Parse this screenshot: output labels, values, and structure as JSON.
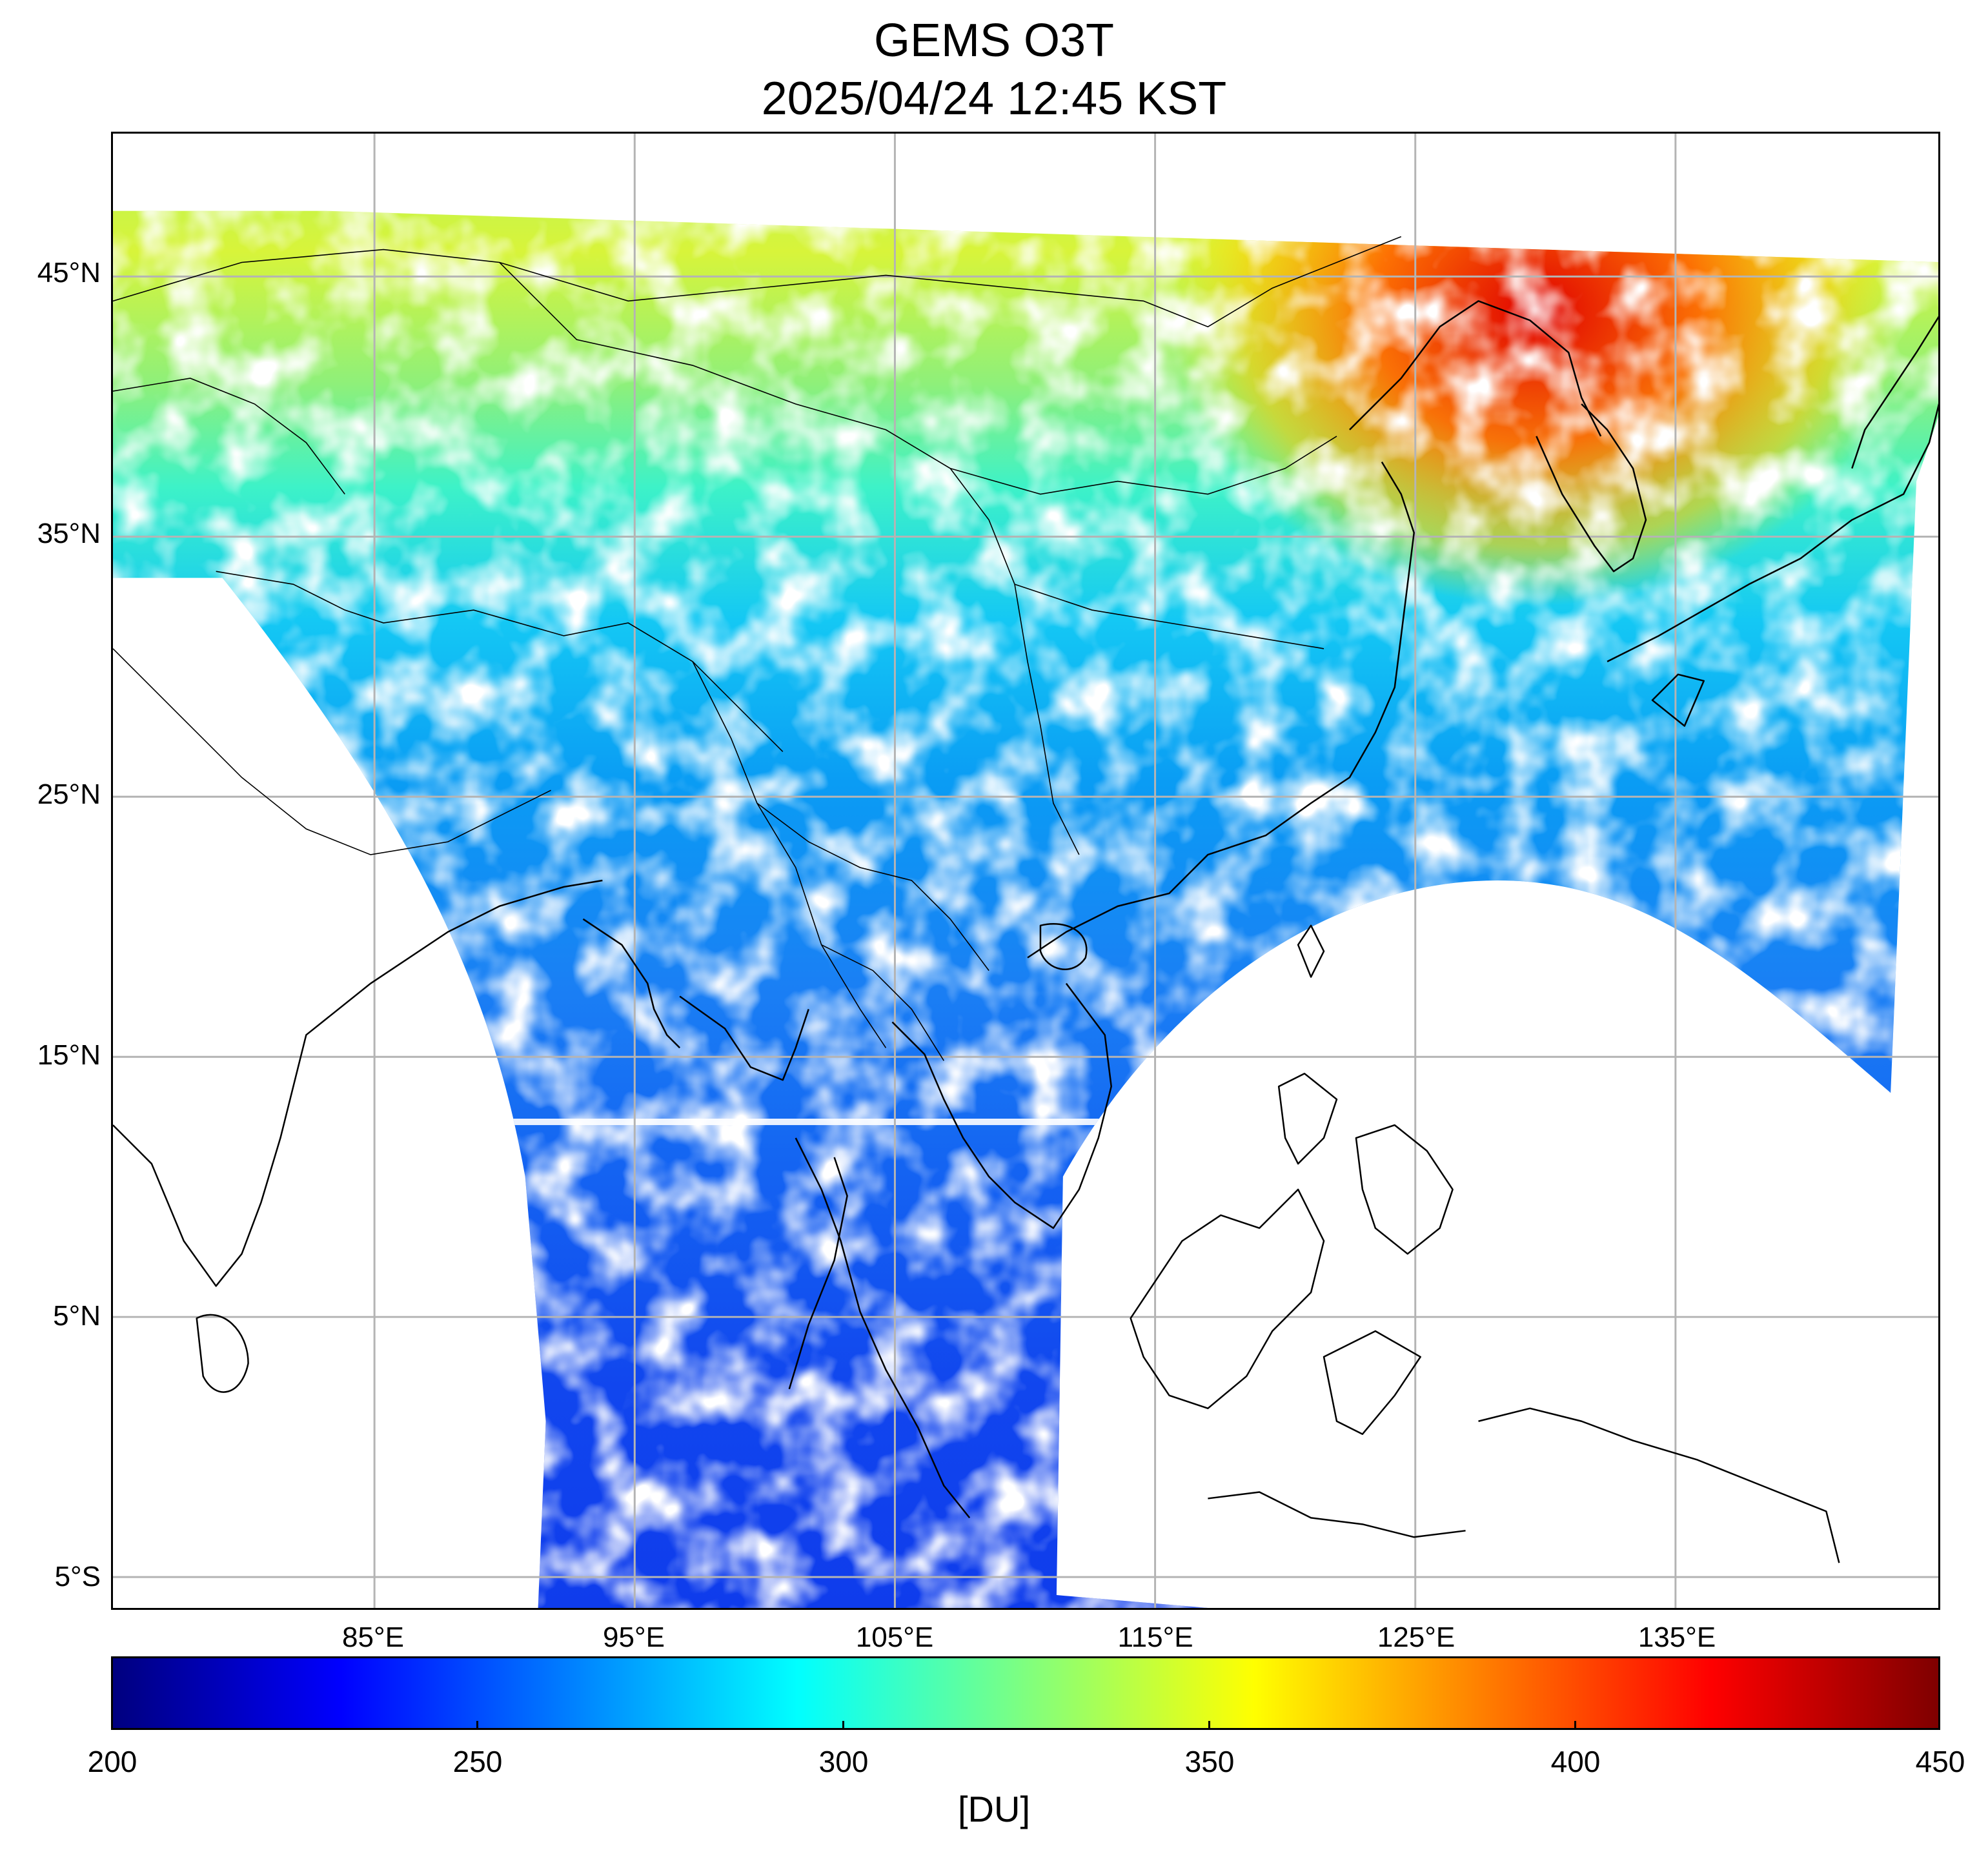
{
  "header": {
    "title": "GEMS O3T",
    "subtitle": "2025/04/24 12:45 KST"
  },
  "map": {
    "lat_labels": [
      "45°N",
      "35°N",
      "25°N",
      "15°N",
      "5°N",
      "5°S"
    ],
    "lon_labels": [
      "85°E",
      "95°E",
      "105°E",
      "115°E",
      "125°E",
      "135°E"
    ],
    "grid_color": "#b4b4b4",
    "coastline_color": "#000000",
    "no_data_color": "#ffffff"
  },
  "colorbar": {
    "colormap": "jet",
    "colors": [
      "#00007f",
      "#0000ff",
      "#007fff",
      "#00ffff",
      "#7fff7f",
      "#ffff00",
      "#ff7f00",
      "#ff0000",
      "#7f0000"
    ],
    "min": 200,
    "max": 450,
    "ticks": [
      "200",
      "250",
      "300",
      "350",
      "400",
      "450"
    ],
    "unit": "[DU]"
  }
}
